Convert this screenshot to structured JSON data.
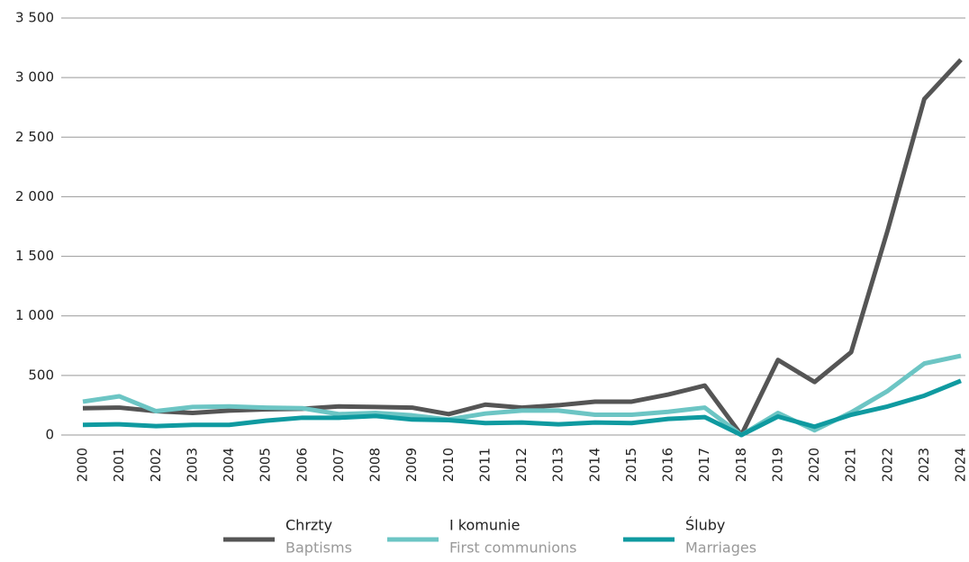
{
  "chart_data": {
    "type": "line",
    "categories": [
      "2000",
      "2001",
      "2002",
      "2003",
      "2004",
      "2005",
      "2006",
      "2007",
      "2008",
      "2009",
      "2010",
      "2011",
      "2012",
      "2013",
      "2014",
      "2015",
      "2016",
      "2017",
      "2018",
      "2019",
      "2020",
      "2021",
      "2022",
      "2023",
      "2024"
    ],
    "series": [
      {
        "name": "Chrzty",
        "subname": "Baptisms",
        "color": "#555555",
        "values": [
          225,
          230,
          200,
          185,
          205,
          215,
          220,
          240,
          235,
          230,
          175,
          255,
          230,
          250,
          280,
          280,
          340,
          415,
          0,
          630,
          445,
          695,
          1720,
          2820,
          3150
        ]
      },
      {
        "name": "I komunie",
        "subname": "First communions",
        "color": "#6cc5c4",
        "values": [
          280,
          325,
          200,
          235,
          240,
          230,
          225,
          175,
          185,
          165,
          130,
          180,
          205,
          205,
          170,
          170,
          195,
          230,
          0,
          185,
          40,
          190,
          370,
          600,
          665
        ]
      },
      {
        "name": "Śluby",
        "subname": "Marriages",
        "color": "#0f9aa0",
        "values": [
          85,
          90,
          75,
          85,
          85,
          120,
          145,
          145,
          160,
          130,
          125,
          100,
          105,
          90,
          105,
          100,
          135,
          150,
          0,
          155,
          70,
          170,
          240,
          330,
          455
        ]
      }
    ],
    "ylim": [
      0,
      3500
    ],
    "yticks": [
      0,
      500,
      {
        "value": 1000,
        "label": "1 000"
      },
      {
        "value": 1500,
        "label": "1 500"
      },
      {
        "value": 2000,
        "label": "2 000"
      },
      {
        "value": 2500,
        "label": "2 500"
      },
      {
        "value": 3000,
        "label": "3 000"
      },
      {
        "value": 3500,
        "label": "3 500"
      }
    ],
    "grid": true,
    "legend": "bottom"
  }
}
